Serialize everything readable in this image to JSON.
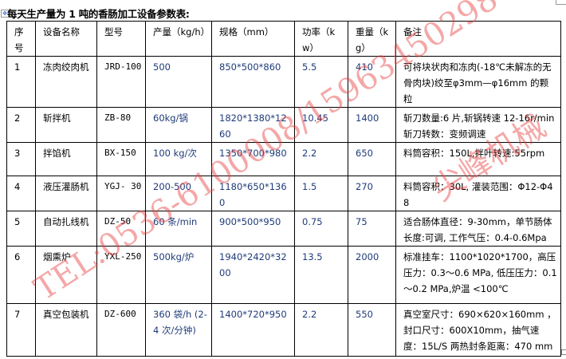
{
  "title": "每天生产量为 1 吨的香肠加工设备参数表:",
  "headers": [
    "序号",
    "设备名称",
    "型号",
    "产量（kg/h）",
    "规格（mm）",
    "功率（kw）",
    "重量（kg）",
    "备注"
  ],
  "rows": [
    {
      "no": "1",
      "name": "冻肉绞肉机",
      "model": "JRD-100",
      "output": "500",
      "size": "850*500*860",
      "power": "5.5",
      "weight": "410",
      "note": "可将块状肉和冻肉(-18℃未解冻的无骨肉块)绞至φ3mm—φ16mm 的颗粒"
    },
    {
      "no": "2",
      "name": "斩拌机",
      "model": "ZB-80",
      "output": "60kg/锅",
      "size": "1820*1380*1260",
      "power": "10.45",
      "weight": "1400",
      "note": "斩刀数量:6 片,斩锅转速 12-16r/min 斩刀转数：变频调速"
    },
    {
      "no": "3",
      "name": "拌馅机",
      "model": "BX-150",
      "output": "100 kg/次",
      "size": "1350*700*980",
      "power": "2.2",
      "weight": "650",
      "note": "料筒容积：150L,拌叶转速:55rpm"
    },
    {
      "no": "4",
      "name": "液压灌肠机",
      "model": "YGJ- 30",
      "output": "200-500",
      "size": "1180*650*1360",
      "power": "1.5",
      "weight": "270",
      "note": "料筒容积：30L, 灌装范围：Φ12-Φ48"
    },
    {
      "no": "5",
      "name": "自动扎线机",
      "model": "DZ-50",
      "output": "60 条/min",
      "size": "900*500*950",
      "power": "0.75",
      "weight": "75",
      "note": "适合肠体直径：9-30mm，单节肠体长度:可调, 工作气压：0.4-0.6Mpa"
    },
    {
      "no": "6",
      "name": "烟熏炉",
      "model": "YXL-250",
      "output": "500kg/炉",
      "size": "1940*2420*3200",
      "power": "13.5",
      "weight": "2000",
      "note": "标准挂车：1100*1020*1700，高压压力：0.3～0.6 MPa, 低压压力：0.1～0.2 MPa,炉温 <100℃"
    },
    {
      "no": "7",
      "name": "真空包装机",
      "model": "DZ-600",
      "output": "360 袋/h (2-4 次/分钟)",
      "size": "1400*720*950",
      "power": "2.2",
      "weight": "550",
      "note": "真空室尺寸：690×620×160mm ，封口尺寸：600X10mm，抽气速度：15L/S 两热封条距离：470 mm"
    }
  ],
  "watermark": {
    "phone": "TEL:0536-6100008/15963450298",
    "company": "尖峰机械",
    "color": "#e63c3c"
  }
}
